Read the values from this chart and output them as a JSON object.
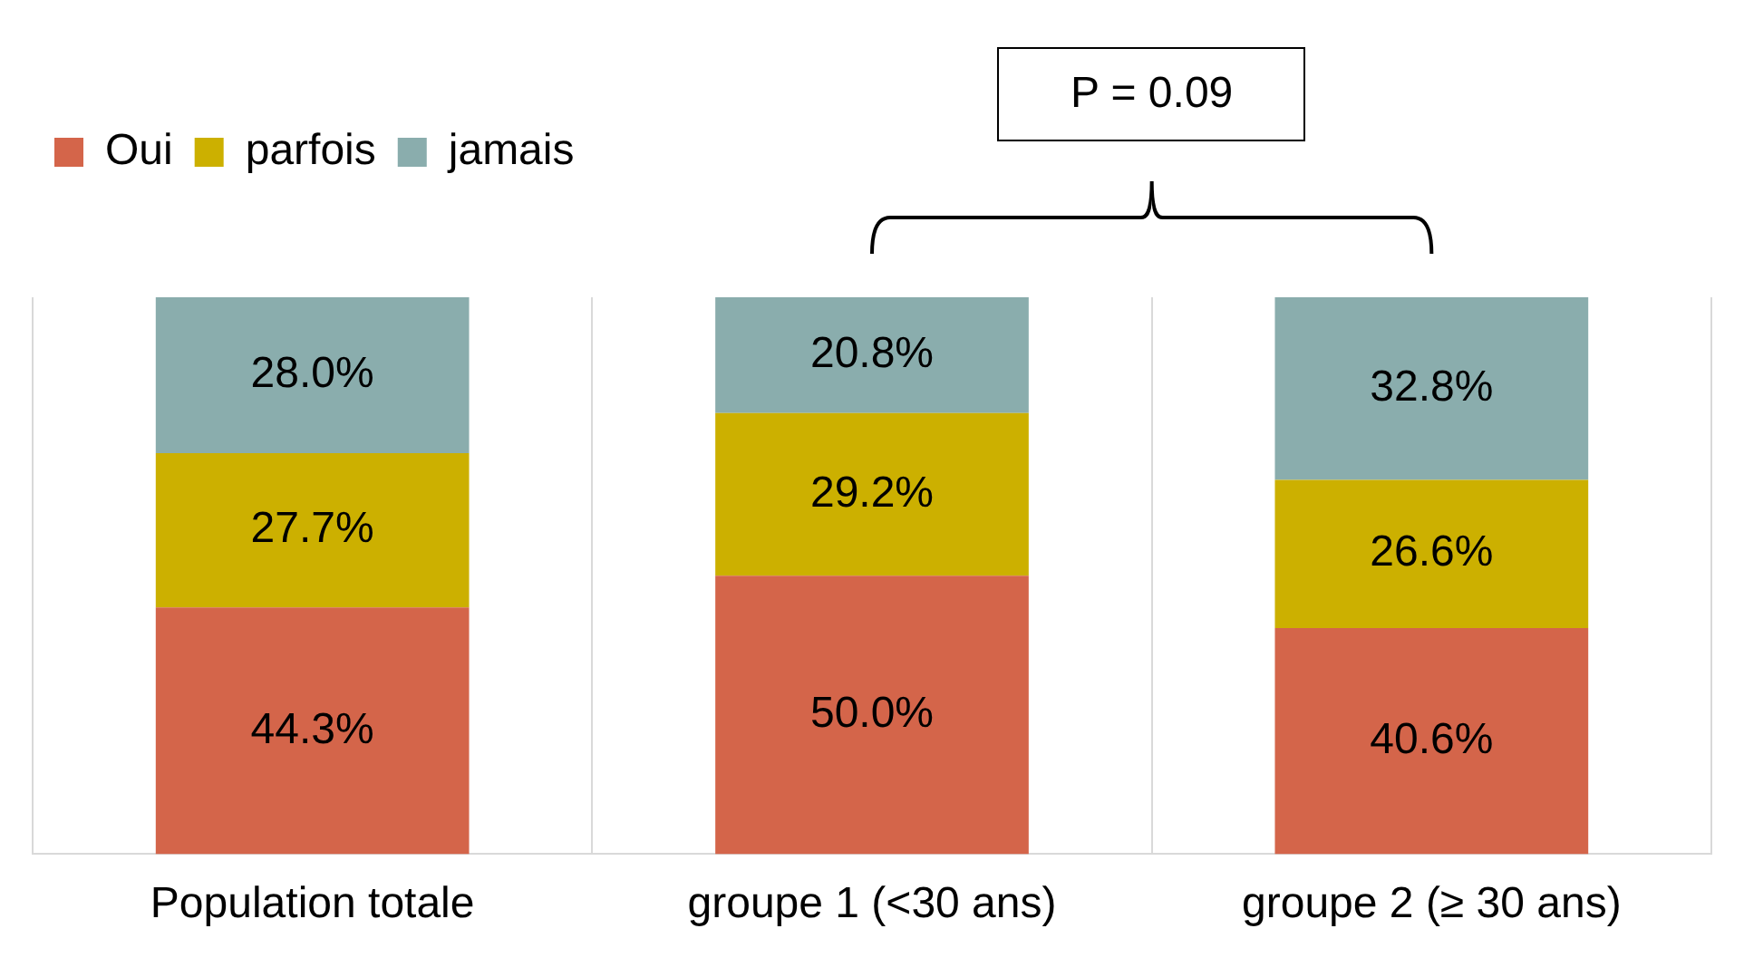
{
  "chart_data": {
    "type": "bar",
    "stacked": true,
    "categories": [
      "Population totale",
      "groupe 1 (<30 ans)",
      "groupe 2 (≥ 30 ans)"
    ],
    "series": [
      {
        "name": "Oui",
        "color": "#d4654a",
        "values": [
          44.3,
          50.0,
          40.6
        ],
        "value_labels": [
          "44.3%",
          "50.0%",
          "40.6%"
        ]
      },
      {
        "name": "parfois",
        "color": "#ccb000",
        "values": [
          27.7,
          29.2,
          26.6
        ],
        "value_labels": [
          "27.7%",
          "29.2%",
          "26.6%"
        ]
      },
      {
        "name": "jamais",
        "color": "#8aadad",
        "values": [
          28.0,
          20.8,
          32.8
        ],
        "value_labels": [
          "28.0%",
          "20.8%",
          "32.8%"
        ]
      }
    ],
    "legend": "top left",
    "grid": "x",
    "annotations": [
      "P = 0.09"
    ]
  }
}
